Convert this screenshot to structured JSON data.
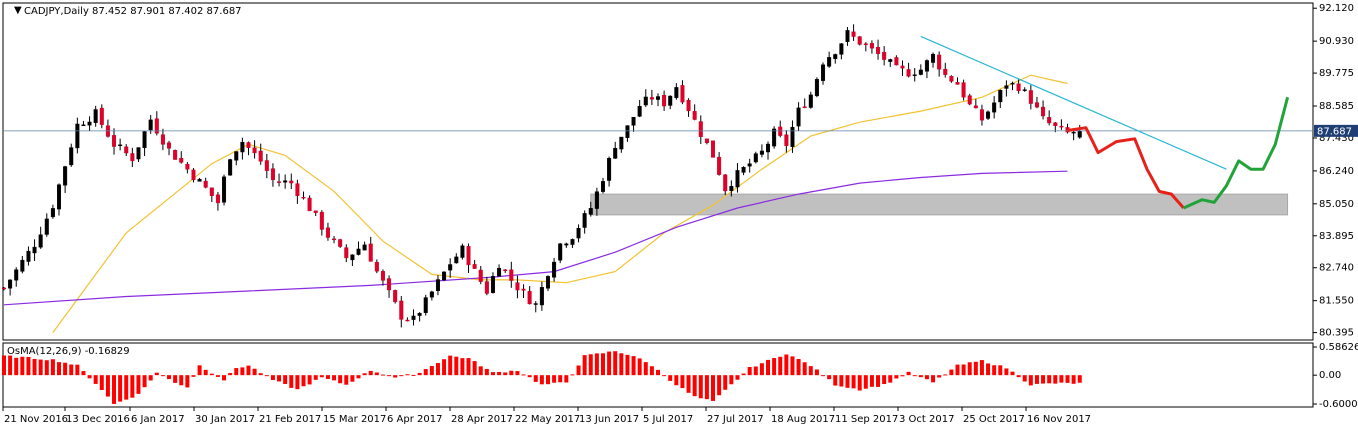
{
  "header": {
    "symbol_info": "CADJPY,Daily  87.452 87.901 87.402 87.687",
    "osma_label": "OsMA(12,26,9) -0.16829"
  },
  "chart_data": [
    {
      "type": "candlestick",
      "title": "CADJPY,Daily",
      "ohlc_last": {
        "open": 87.452,
        "high": 87.901,
        "low": 87.402,
        "close": 87.687
      },
      "current_price": 87.687,
      "y_tick_labels": [
        "92.120",
        "90.930",
        "89.775",
        "88.585",
        "87.430",
        "86.240",
        "85.050",
        "83.895",
        "82.740",
        "81.550",
        "80.395"
      ],
      "ylim": [
        80.2,
        92.2
      ],
      "x_tick_labels": [
        "21 Nov 2016",
        "13 Dec 2016",
        "6 Jan 2017",
        "30 Jan 2017",
        "21 Feb 2017",
        "15 Mar 2017",
        "6 Apr 2017",
        "28 Apr 2017",
        "22 May 2017",
        "13 Jun 2017",
        "5 Jul 2017",
        "27 Jul 2017",
        "18 Aug 2017",
        "11 Sep 2017",
        "3 Oct 2017",
        "25 Oct 2017",
        "16 Nov 2017"
      ],
      "close_path": [
        [
          0,
          82.0
        ],
        [
          5,
          83.6
        ],
        [
          8,
          85.0
        ],
        [
          12,
          87.9
        ],
        [
          15,
          88.3
        ],
        [
          18,
          87.2
        ],
        [
          21,
          86.7
        ],
        [
          24,
          88.1
        ],
        [
          27,
          87.0
        ],
        [
          30,
          86.3
        ],
        [
          33,
          85.6
        ],
        [
          35,
          85.1
        ],
        [
          37,
          86.8
        ],
        [
          39,
          87.3
        ],
        [
          42,
          86.6
        ],
        [
          44,
          85.9
        ],
        [
          47,
          85.8
        ],
        [
          50,
          84.9
        ],
        [
          53,
          83.9
        ],
        [
          56,
          83.1
        ],
        [
          59,
          83.6
        ],
        [
          61,
          82.6
        ],
        [
          63,
          81.8
        ],
        [
          65,
          81.0
        ],
        [
          67,
          80.85
        ],
        [
          69,
          81.5
        ],
        [
          71,
          82.2
        ],
        [
          73,
          82.9
        ],
        [
          75,
          83.4
        ],
        [
          77,
          82.6
        ],
        [
          79,
          81.9
        ],
        [
          81,
          82.9
        ],
        [
          83,
          82.3
        ],
        [
          85,
          81.8
        ],
        [
          87,
          81.4
        ],
        [
          89,
          82.6
        ],
        [
          91,
          83.6
        ],
        [
          93,
          83.9
        ],
        [
          96,
          84.9
        ],
        [
          98,
          86.0
        ],
        [
          100,
          87.2
        ],
        [
          102,
          87.8
        ],
        [
          104,
          88.6
        ],
        [
          106,
          88.9
        ],
        [
          108,
          88.7
        ],
        [
          110,
          89.3
        ],
        [
          112,
          88.5
        ],
        [
          114,
          87.6
        ],
        [
          116,
          86.8
        ],
        [
          118,
          85.6
        ],
        [
          120,
          86.1
        ],
        [
          122,
          86.5
        ],
        [
          124,
          86.9
        ],
        [
          126,
          87.6
        ],
        [
          128,
          87.2
        ],
        [
          130,
          88.4
        ],
        [
          132,
          89.0
        ],
        [
          134,
          90.2
        ],
        [
          136,
          90.6
        ],
        [
          138,
          91.2
        ],
        [
          140,
          90.9
        ],
        [
          142,
          90.6
        ],
        [
          144,
          90.3
        ],
        [
          146,
          89.9
        ],
        [
          148,
          89.8
        ],
        [
          150,
          89.9
        ],
        [
          152,
          90.4
        ],
        [
          154,
          89.7
        ],
        [
          156,
          89.4
        ],
        [
          158,
          88.6
        ],
        [
          160,
          88.1
        ],
        [
          162,
          88.7
        ],
        [
          164,
          89.4
        ],
        [
          166,
          89.3
        ],
        [
          168,
          88.8
        ],
        [
          170,
          88.1
        ],
        [
          172,
          87.8
        ],
        [
          174,
          87.6
        ],
        [
          176,
          87.69
        ]
      ],
      "moving_averages": [
        {
          "points": [
            [
              8,
              80.4
            ],
            [
              20,
              84.0
            ],
            [
              34,
              86.5
            ],
            [
              40,
              87.2
            ],
            [
              46,
              86.8
            ],
            [
              54,
              85.5
            ],
            [
              62,
              83.7
            ],
            [
              70,
              82.5
            ],
            [
              78,
              82.3
            ],
            [
              84,
              82.3
            ],
            [
              92,
              82.2
            ],
            [
              100,
              82.6
            ],
            [
              108,
              84.0
            ],
            [
              116,
              85.0
            ],
            [
              124,
              86.3
            ],
            [
              132,
              87.5
            ],
            [
              140,
              88.0
            ],
            [
              150,
              88.4
            ],
            [
              160,
              88.9
            ],
            [
              168,
              89.7
            ],
            [
              174,
              89.4
            ]
          ]
        },
        {
          "points": [
            [
              0,
              81.4
            ],
            [
              20,
              81.7
            ],
            [
              40,
              81.9
            ],
            [
              60,
              82.1
            ],
            [
              80,
              82.4
            ],
            [
              90,
              82.6
            ],
            [
              100,
              83.3
            ],
            [
              110,
              84.2
            ],
            [
              120,
              84.9
            ],
            [
              130,
              85.4
            ],
            [
              140,
              85.8
            ],
            [
              150,
              86.0
            ],
            [
              160,
              86.15
            ],
            [
              174,
              86.23
            ]
          ]
        }
      ],
      "support_zone": {
        "price_low": 84.65,
        "price_high": 85.4
      },
      "trendline": {
        "from": [
          150,
          91.1
        ],
        "to": [
          200,
          86.3
        ]
      },
      "projection_down": [
        [
          174,
          87.7
        ],
        [
          177,
          87.8
        ],
        [
          179,
          86.9
        ],
        [
          182,
          87.3
        ],
        [
          185,
          87.4
        ],
        [
          187,
          86.3
        ],
        [
          189,
          85.5
        ],
        [
          191,
          85.4
        ],
        [
          193,
          84.9
        ]
      ],
      "projection_up": [
        [
          193,
          84.9
        ],
        [
          196,
          85.2
        ],
        [
          198,
          85.1
        ],
        [
          200,
          85.7
        ],
        [
          202,
          86.6
        ],
        [
          204,
          86.3
        ],
        [
          206,
          86.3
        ],
        [
          208,
          87.2
        ],
        [
          210,
          88.9
        ]
      ]
    },
    {
      "type": "bar",
      "title": "OsMA(12,26,9)",
      "current_value": -0.16829,
      "y_tick_labels": [
        "0.58626",
        "0.00",
        "-0.60004"
      ],
      "ylim": [
        -0.6,
        0.586
      ],
      "histogram_profile": [
        [
          0,
          0.4
        ],
        [
          8,
          0.32
        ],
        [
          12,
          0.2
        ],
        [
          16,
          -0.3
        ],
        [
          18,
          -0.6
        ],
        [
          22,
          -0.4
        ],
        [
          25,
          0.05
        ],
        [
          28,
          -0.15
        ],
        [
          30,
          -0.25
        ],
        [
          32,
          0.2
        ],
        [
          34,
          0.05
        ],
        [
          36,
          -0.1
        ],
        [
          38,
          0.15
        ],
        [
          40,
          0.2
        ],
        [
          44,
          -0.1
        ],
        [
          48,
          -0.3
        ],
        [
          52,
          -0.05
        ],
        [
          56,
          -0.2
        ],
        [
          60,
          0.1
        ],
        [
          64,
          -0.05
        ],
        [
          68,
          0.05
        ],
        [
          70,
          0.2
        ],
        [
          73,
          0.4
        ],
        [
          76,
          0.35
        ],
        [
          80,
          0.05
        ],
        [
          84,
          0.1
        ],
        [
          88,
          -0.2
        ],
        [
          92,
          -0.15
        ],
        [
          95,
          0.4
        ],
        [
          100,
          0.5
        ],
        [
          103,
          0.4
        ],
        [
          106,
          0.2
        ],
        [
          110,
          -0.2
        ],
        [
          113,
          -0.45
        ],
        [
          116,
          -0.55
        ],
        [
          119,
          -0.2
        ],
        [
          122,
          0.15
        ],
        [
          126,
          0.35
        ],
        [
          128,
          0.45
        ],
        [
          132,
          0.2
        ],
        [
          136,
          -0.2
        ],
        [
          140,
          -0.3
        ],
        [
          144,
          -0.2
        ],
        [
          148,
          0.05
        ],
        [
          152,
          -0.15
        ],
        [
          156,
          0.2
        ],
        [
          160,
          0.3
        ],
        [
          164,
          0.15
        ],
        [
          168,
          -0.2
        ],
        [
          172,
          -0.17
        ]
      ]
    }
  ]
}
